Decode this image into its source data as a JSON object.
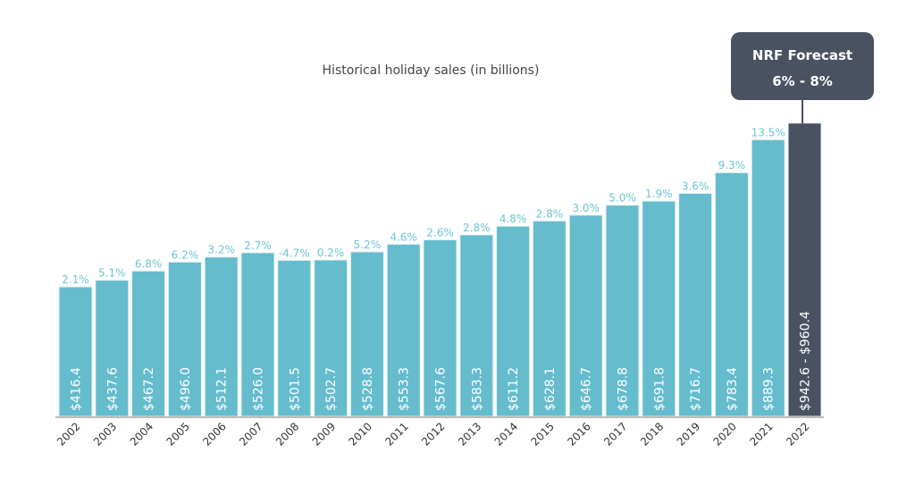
{
  "chart_data": {
    "type": "bar",
    "title": "Historical holiday sales (in billions)",
    "xlabel": "",
    "ylabel": "",
    "ylim": [
      0,
      960.4
    ],
    "grid": false,
    "categories": [
      "2002",
      "2003",
      "2004",
      "2005",
      "2006",
      "2007",
      "2008",
      "2009",
      "2010",
      "2011",
      "2012",
      "2013",
      "2014",
      "2015",
      "2016",
      "2017",
      "2018",
      "2019",
      "2020",
      "2021",
      "2022"
    ],
    "values": [
      416.4,
      437.6,
      467.2,
      496.0,
      512.1,
      526.0,
      501.5,
      502.7,
      528.8,
      553.3,
      567.6,
      583.3,
      611.2,
      628.1,
      646.7,
      678.8,
      691.8,
      716.7,
      783.4,
      889.3,
      942.6
    ],
    "value_labels": [
      "$416.4",
      "$437.6",
      "$467.2",
      "$496.0",
      "$512.1",
      "$526.0",
      "$501.5",
      "$502.7",
      "$528.8",
      "$553.3",
      "$567.6",
      "$583.3",
      "$611.2",
      "$628.1",
      "$646.7",
      "$678.8",
      "$691.8",
      "$716.7",
      "$783.4",
      "$889.3",
      "$942.6 - $960.4"
    ],
    "growth_labels": [
      "2.1%",
      "5.1%",
      "6.8%",
      "6.2%",
      "3.2%",
      "2.7%",
      "-4.7%",
      "0.2%",
      "5.2%",
      "4.6%",
      "2.6%",
      "2.8%",
      "4.8%",
      "2.8%",
      "3.0%",
      "5.0%",
      "1.9%",
      "3.6%",
      "9.3%",
      "13.5%",
      ""
    ],
    "forecast_range": [
      942.6,
      960.4
    ],
    "annotation": {
      "line1": "NRF Forecast",
      "line2": "6% - 8%"
    },
    "colors": {
      "historical": "#64bccd",
      "forecast": "#4a5261",
      "growth_label": "#6cc5d6",
      "axis": "#bbbbbb"
    }
  }
}
